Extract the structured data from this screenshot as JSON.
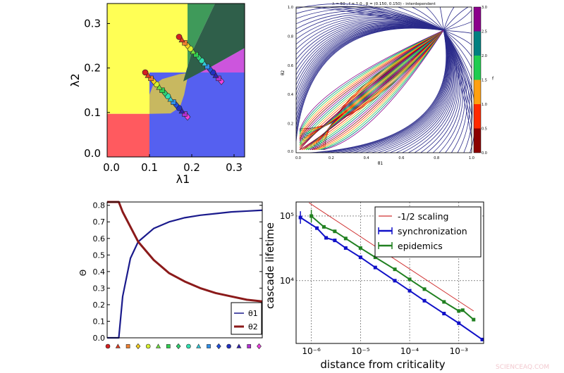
{
  "watermark": "SCIENCEAQ.COM",
  "chart_data": [
    {
      "id": "phase_diagram",
      "type": "area",
      "xlabel": "λ1",
      "ylabel": "λ2",
      "xlim": [
        0,
        0.325
      ],
      "ylim": [
        0,
        0.345
      ],
      "xticks": [
        0.0,
        0.1,
        0.2,
        0.3
      ],
      "xtick_labels": [
        "0.0",
        "0.1",
        "0.2",
        "0.3"
      ],
      "yticks": [
        0.0,
        0.1,
        0.2,
        0.3
      ],
      "ytick_labels": [
        "0.0",
        "0.1",
        "0.2",
        "0.3"
      ],
      "regions": [
        {
          "color": "#ffff55",
          "points": [
            [
              0,
              0.097
            ],
            [
              0.19,
              0.097
            ],
            [
              0.19,
              0.345
            ],
            [
              0,
              0.345
            ]
          ]
        },
        {
          "color": "#ff5a5f",
          "points": [
            [
              0,
              0
            ],
            [
              0.1,
              0
            ],
            [
              0.1,
              0.097
            ],
            [
              0,
              0.097
            ]
          ]
        },
        {
          "color": "#5560f0",
          "points": [
            [
              0.1,
              0
            ],
            [
              0.325,
              0
            ],
            [
              0.325,
              0.19
            ],
            [
              0.1,
              0.19
            ]
          ]
        },
        {
          "color": "#c8b860",
          "points": [
            [
              0.1,
              0.097
            ],
            [
              0.15,
              0.098
            ],
            [
              0.172,
              0.112
            ],
            [
              0.182,
              0.14
            ],
            [
              0.19,
              0.178
            ],
            [
              0.2,
              0.19
            ],
            [
              0.17,
              0.186
            ],
            [
              0.13,
              0.175
            ],
            [
              0.108,
              0.16
            ],
            [
              0.1,
              0.14
            ]
          ]
        },
        {
          "color": "#cc55dd",
          "points": [
            [
              0.2,
              0.19
            ],
            [
              0.325,
              0.19
            ],
            [
              0.325,
              0.245
            ],
            [
              0.25,
              0.205
            ],
            [
              0.18,
              0.178
            ]
          ]
        },
        {
          "color": "#3f9a5a",
          "points": [
            [
              0.19,
              0.345
            ],
            [
              0.255,
              0.345
            ],
            [
              0.2,
              0.235
            ],
            [
              0.18,
              0.17
            ],
            [
              0.19,
              0.19
            ]
          ]
        },
        {
          "color": "#2f5f4a",
          "points": [
            [
              0.255,
              0.345
            ],
            [
              0.325,
              0.345
            ],
            [
              0.325,
              0.245
            ],
            [
              0.25,
              0.205
            ],
            [
              0.18,
              0.17
            ],
            [
              0.2,
              0.235
            ]
          ]
        }
      ],
      "marker_series": [
        {
          "start": [
            0.09,
            0.19
          ],
          "end": [
            0.19,
            0.09
          ]
        },
        {
          "start": [
            0.17,
            0.27
          ],
          "end": [
            0.27,
            0.17
          ]
        }
      ],
      "marker_colors": [
        "#d42020",
        "#e03a20",
        "#f08030",
        "#f5d020",
        "#d8f030",
        "#70e040",
        "#30d050",
        "#30d070",
        "#30e0b0",
        "#30c8d8",
        "#3090e8",
        "#2050e0",
        "#2030c0",
        "#3020b0",
        "#b030d0",
        "#f040e0"
      ],
      "marker_shapes": [
        "circle",
        "triangle",
        "square",
        "diamond"
      ]
    },
    {
      "id": "stream_plot",
      "type": "line",
      "title": "λ = 50 , f = 1.0 , β = (0.150, 0.150) - interdependent",
      "xlabel": "θ1",
      "ylabel": "θ2",
      "xlim": [
        0,
        1
      ],
      "ylim": [
        0,
        1
      ],
      "xtick_labels": [
        "0.0",
        "0.2",
        "0.4",
        "0.6",
        "0.8",
        "1.0"
      ],
      "ytick_labels": [
        "0.0",
        "0.2",
        "0.4",
        "0.6",
        "0.8",
        "1.0"
      ],
      "fixed_point": [
        0.84,
        0.84
      ],
      "colorbar": {
        "label": "f",
        "ticks": [
          "0.0",
          "0.5",
          "1.0",
          "1.5",
          "2.0",
          "2.5",
          "3.0"
        ],
        "colors": [
          "#8b0000",
          "#ff2a00",
          "#ffa010",
          "#20cc50",
          "#008080",
          "#8b008b"
        ]
      },
      "stream_color": "#2a2a8a"
    },
    {
      "id": "order_parameter",
      "type": "line",
      "ylabel": "Θ",
      "xlim": [
        0,
        1
      ],
      "ylim": [
        0,
        0.82
      ],
      "ytick_labels": [
        "0.0",
        "0.1",
        "0.2",
        "0.3",
        "0.4",
        "0.5",
        "0.6",
        "0.7",
        "0.8"
      ],
      "x": [
        0,
        0.05,
        0.075,
        0.1,
        0.15,
        0.2,
        0.3,
        0.4,
        0.5,
        0.6,
        0.7,
        0.8,
        0.9,
        1.0
      ],
      "series": [
        {
          "name": "θ1",
          "color": "#1a1a8c",
          "values": [
            0,
            0,
            0,
            0.25,
            0.48,
            0.58,
            0.66,
            0.7,
            0.725,
            0.74,
            0.75,
            0.76,
            0.765,
            0.77
          ]
        },
        {
          "name": "θ2",
          "color": "#8b1a1a",
          "values": [
            0.82,
            0.82,
            0.82,
            0.76,
            0.67,
            0.58,
            0.47,
            0.39,
            0.34,
            0.3,
            0.27,
            0.25,
            0.23,
            0.22
          ]
        }
      ],
      "legend": "lower-right",
      "legend_labels": [
        "θ1",
        "θ2"
      ]
    },
    {
      "id": "cascade_lifetime",
      "type": "line",
      "xlabel": "distance from criticality",
      "ylabel": "cascade lifetime",
      "xscale": "log",
      "yscale": "log",
      "xlim": [
        4.9e-07,
        0.0032
      ],
      "ylim": [
        1070,
        165000
      ],
      "xticks": [
        1e-06,
        1e-05,
        0.0001,
        0.001
      ],
      "xtick_labels": [
        "10⁻⁶",
        "10⁻⁵",
        "10⁻⁴",
        "10⁻³"
      ],
      "yticks": [
        10000.0,
        100000.0
      ],
      "ytick_labels": [
        "10⁴",
        "10⁵"
      ],
      "grid": true,
      "legend": "top-right",
      "series": [
        {
          "name": "-1/2 scaling",
          "color": "#d03030",
          "x": [
            9e-07,
            0.002
          ],
          "y": [
            160000,
            3400
          ]
        },
        {
          "name": "synchronization",
          "color": "#1010c8",
          "x": [
            6e-07,
            1.3e-06,
            2e-06,
            3e-06,
            5e-06,
            1e-05,
            2e-05,
            5e-05,
            0.0001,
            0.0002,
            0.0005,
            0.001,
            0.003
          ],
          "y": [
            95000,
            65000,
            46000,
            42000,
            32000,
            23000,
            16000,
            10000,
            7000,
            4900,
            3100,
            2200,
            1230
          ]
        },
        {
          "name": "epidemics",
          "color": "#208020",
          "x": [
            1e-06,
            1.8e-06,
            3e-06,
            5e-06,
            1e-05,
            2e-05,
            5e-05,
            0.0001,
            0.0002,
            0.0005,
            0.001,
            0.0012,
            0.002
          ],
          "y": [
            100000,
            68000,
            58000,
            45000,
            32000,
            23000,
            15000,
            10500,
            7400,
            4700,
            3400,
            3500,
            2500
          ]
        }
      ]
    }
  ]
}
